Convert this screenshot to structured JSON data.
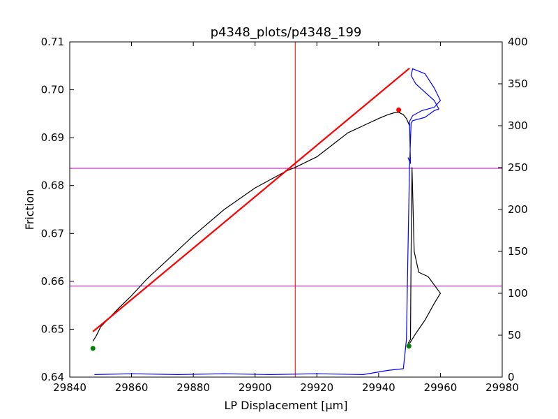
{
  "chart_data": {
    "type": "line",
    "title": "p4348_plots/p4348_199",
    "xlabel": "LP Displacement [μm]",
    "ylabel": "Friction",
    "xlim": [
      29840,
      29980
    ],
    "ylim": [
      0.64,
      0.71
    ],
    "y2lim": [
      0,
      400
    ],
    "x_ticks": [
      "29840",
      "29860",
      "29880",
      "29900",
      "29920",
      "29940",
      "29960",
      "29980"
    ],
    "y_ticks": [
      "0.64",
      "0.65",
      "0.66",
      "0.67",
      "0.68",
      "0.69",
      "0.70",
      "0.71"
    ],
    "y2_ticks": [
      "0",
      "50",
      "100",
      "150",
      "200",
      "250",
      "300",
      "350",
      "400"
    ],
    "grid": false,
    "legend": "none",
    "colors": {
      "friction": "#000000",
      "fit": "#ff0000",
      "rate": "#0000ff",
      "vline": "#ff0000",
      "hlines": "#bf00bf",
      "start_marker": "#008000",
      "peak_marker": "#ff0000"
    },
    "series": [
      {
        "axis": "left",
        "x": [
          29847.5,
          29848.5,
          29850,
          29853,
          29856,
          29860,
          29865,
          29870,
          29880,
          29890,
          29900,
          29910,
          29913,
          29920,
          29927,
          29930,
          29935,
          29940,
          29943,
          29945,
          29946.5,
          29948,
          29949,
          29950
        ],
        "y": [
          0.6475,
          0.6485,
          0.6505,
          0.6525,
          0.6545,
          0.657,
          0.6605,
          0.6635,
          0.6695,
          0.675,
          0.6795,
          0.683,
          0.6838,
          0.686,
          0.6895,
          0.691,
          0.6925,
          0.694,
          0.6948,
          0.6952,
          0.6953,
          0.6948,
          0.694,
          0.6925
        ]
      },
      {
        "axis": "left",
        "x": [
          29847.5,
          29950
        ],
        "y": [
          0.6495,
          0.7045
        ]
      },
      {
        "axis": "right",
        "x": [
          29848,
          29860,
          29875,
          29890,
          29905,
          29920,
          29935,
          29943,
          29948,
          29949,
          29949.5,
          29950,
          29950.5,
          29951,
          29955,
          29958,
          29959.5,
          29958,
          29952,
          29950.5,
          29951,
          29955,
          29958,
          29960,
          29958,
          29954,
          29951,
          29950,
          29950.3,
          29949.5
        ],
        "y": [
          3,
          4,
          3,
          4,
          3,
          4,
          3,
          8,
          10,
          45,
          150,
          250,
          303,
          306,
          310,
          318,
          320,
          330,
          350,
          360,
          368,
          362,
          345,
          330,
          322,
          318,
          312,
          305,
          255,
          262
        ]
      },
      {
        "axis": "right",
        "x": [
          29949.5,
          29950.3,
          29950.5,
          29950.8,
          29951.5,
          29953,
          29956,
          29959,
          29960,
          29958,
          29955,
          29952,
          29950
        ],
        "y": [
          40,
          45,
          150,
          250,
          150,
          125,
          120,
          105,
          100,
          88,
          68,
          52,
          40
        ]
      }
    ],
    "vlines": [
      29913
    ],
    "hlines": [
      0.6836,
      0.659
    ],
    "markers": [
      {
        "x": 29847.5,
        "y": 0.646,
        "axis": "left"
      },
      {
        "x": 29946.5,
        "y": 0.6958,
        "axis": "left"
      },
      {
        "x": 29949.8,
        "y": 37,
        "axis": "right"
      }
    ]
  }
}
